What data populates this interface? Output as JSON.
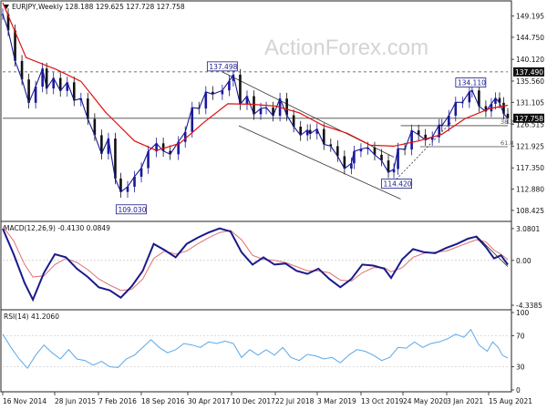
{
  "header": {
    "main": "EURJPY,Weekly  128.188 129.625 127.728 127.758",
    "macd": "MACD(12,26,9) -0.4130 0.0849",
    "rsi": "RSI(14) 41.2060"
  },
  "watermark": "ActionForex.com",
  "colors": {
    "bull": "#1a1a99",
    "bear": "#111111",
    "ma": "#e01010",
    "macd": "#1a1a8c",
    "signal": "#e07070",
    "rsi": "#5aa8e8",
    "channel": "#333333",
    "level": "#444444",
    "ann_fill": "#ffffff",
    "ann_border": "#1a1a8c",
    "last_bg": "#111111",
    "grid": "#cccccc"
  },
  "chart_data": [
    {
      "type": "line",
      "name": "price",
      "title": "EURJPY,Weekly",
      "ohlc_last": {
        "open": 128.188,
        "high": 129.625,
        "low": 127.728,
        "close": 127.758
      },
      "last_price": "127.758",
      "y_ticks": [
        "149.195",
        "144.750",
        "140.120",
        "135.560",
        "131.105",
        "126.515",
        "121.925",
        "117.350",
        "112.880",
        "108.425"
      ],
      "ylim": [
        106.5,
        152.0
      ],
      "x_ticks": [
        "16 Nov 2014",
        "28 Jun 2015",
        "7 Feb 2016",
        "18 Sep 2016",
        "30 Apr 2017",
        "10 Dec 2017",
        "22 Jul 2018",
        "3 Mar 2019",
        "13 Oct 2019",
        "24 May 2020",
        "3 Jan 2021",
        "15 Aug 2021"
      ],
      "candles": [
        [
          "2014-11-16",
          149.6
        ],
        [
          "2014-12-14",
          146.2
        ],
        [
          "2015-01-18",
          139.8
        ],
        [
          "2015-02-22",
          135.9
        ],
        [
          "2015-03-29",
          131.0
        ],
        [
          "2015-05-03",
          134.4
        ],
        [
          "2015-06-07",
          138.2
        ],
        [
          "2015-06-28",
          134.0
        ],
        [
          "2015-08-02",
          136.2
        ],
        [
          "2015-09-06",
          133.5
        ],
        [
          "2015-10-11",
          135.3
        ],
        [
          "2015-11-15",
          131.5
        ],
        [
          "2015-12-20",
          131.9
        ],
        [
          "2016-01-24",
          127.6
        ],
        [
          "2016-02-28",
          124.2
        ],
        [
          "2016-04-03",
          120.3
        ],
        [
          "2016-05-08",
          123.5
        ],
        [
          "2016-06-12",
          115.1
        ],
        [
          "2016-07-10",
          112.3
        ],
        [
          "2016-08-14",
          113.4
        ],
        [
          "2016-09-18",
          115.5
        ],
        [
          "2016-10-23",
          117.3
        ],
        [
          "2016-11-27",
          120.8
        ],
        [
          "2017-01-08",
          122.5
        ],
        [
          "2017-02-12",
          120.9
        ],
        [
          "2017-03-19",
          120.2
        ],
        [
          "2017-04-30",
          122.8
        ],
        [
          "2017-06-04",
          124.9
        ],
        [
          "2017-07-09",
          130.0
        ],
        [
          "2017-08-13",
          129.8
        ],
        [
          "2017-09-17",
          133.3
        ],
        [
          "2017-10-22",
          132.8
        ],
        [
          "2017-12-10",
          133.6
        ],
        [
          "2018-01-14",
          135.6
        ],
        [
          "2018-02-04",
          136.9
        ],
        [
          "2018-03-11",
          130.7
        ],
        [
          "2018-04-15",
          132.4
        ],
        [
          "2018-05-20",
          128.6
        ],
        [
          "2018-06-24",
          129.8
        ],
        [
          "2018-07-22",
          130.0
        ],
        [
          "2018-08-26",
          128.3
        ],
        [
          "2018-09-30",
          131.9
        ],
        [
          "2018-11-04",
          128.4
        ],
        [
          "2018-12-09",
          126.0
        ],
        [
          "2019-01-13",
          124.2
        ],
        [
          "2019-02-17",
          125.3
        ],
        [
          "2019-03-03",
          124.5
        ],
        [
          "2019-04-07",
          125.5
        ],
        [
          "2019-05-12",
          122.3
        ],
        [
          "2019-06-16",
          121.9
        ],
        [
          "2019-07-21",
          119.8
        ],
        [
          "2019-08-25",
          117.2
        ],
        [
          "2019-09-29",
          118.3
        ],
        [
          "2019-10-13",
          120.8
        ],
        [
          "2019-11-17",
          121.3
        ],
        [
          "2019-12-22",
          121.6
        ],
        [
          "2020-01-26",
          120.1
        ],
        [
          "2020-03-01",
          118.9
        ],
        [
          "2020-04-05",
          116.4
        ],
        [
          "2020-05-03",
          117.1
        ],
        [
          "2020-05-24",
          121.4
        ],
        [
          "2020-06-28",
          121.2
        ],
        [
          "2020-08-02",
          125.2
        ],
        [
          "2020-09-06",
          124.3
        ],
        [
          "2020-10-11",
          123.2
        ],
        [
          "2020-11-15",
          123.8
        ],
        [
          "2020-12-20",
          126.4
        ],
        [
          "2021-01-03",
          126.2
        ],
        [
          "2021-02-07",
          128.3
        ],
        [
          "2021-03-14",
          131.1
        ],
        [
          "2021-04-18",
          131.1
        ],
        [
          "2021-05-23",
          133.3
        ],
        [
          "2021-06-06",
          133.6
        ],
        [
          "2021-07-11",
          130.3
        ],
        [
          "2021-08-15",
          129.2
        ],
        [
          "2021-09-12",
          130.8
        ],
        [
          "2021-10-03",
          132.0
        ],
        [
          "2021-10-24",
          131.0
        ],
        [
          "2021-11-14",
          128.7
        ],
        [
          "2021-12-05",
          127.758
        ]
      ],
      "moving_average": [
        [
          "2014-11-16",
          152.0
        ],
        [
          "2015-03-15",
          140.5
        ],
        [
          "2015-08-16",
          138.0
        ],
        [
          "2015-12-20",
          135.5
        ],
        [
          "2016-04-24",
          129.0
        ],
        [
          "2016-09-18",
          123.0
        ],
        [
          "2017-01-08",
          121.0
        ],
        [
          "2017-05-07",
          122.5
        ],
        [
          "2017-09-10",
          127.0
        ],
        [
          "2018-01-07",
          130.8
        ],
        [
          "2018-05-06",
          130.7
        ],
        [
          "2018-09-09",
          130.3
        ],
        [
          "2019-01-06",
          128.9
        ],
        [
          "2019-05-05",
          126.3
        ],
        [
          "2019-09-08",
          124.6
        ],
        [
          "2020-01-05",
          122.1
        ],
        [
          "2020-05-03",
          121.9
        ],
        [
          "2020-09-06",
          123.0
        ],
        [
          "2021-01-03",
          124.4
        ],
        [
          "2021-05-02",
          127.7
        ],
        [
          "2021-09-05",
          129.8
        ],
        [
          "2021-12-05",
          130.5
        ]
      ],
      "annotations": [
        {
          "label": "137.498",
          "x": "2017-12-10",
          "y": 137.498
        },
        {
          "label": "109.030",
          "x": "2016-06-26",
          "y": 109.03
        },
        {
          "label": "114.420",
          "x": "2020-05-17",
          "y": 114.42
        },
        {
          "label": "134.110",
          "x": "2021-05-30",
          "y": 134.11
        }
      ],
      "levels": [
        {
          "value": 137.49,
          "label": "137.490",
          "style": "dashed",
          "from": "2014-11-16"
        },
        {
          "value": 127.758,
          "label": "127.758",
          "style": "solid",
          "from": "2014-11-16"
        },
        {
          "value": 126.2,
          "label": "38.2",
          "style": "solid",
          "from": "2020-06-07"
        },
        {
          "value": 121.8,
          "label": "61.8",
          "style": "solid",
          "from": "2020-09-13"
        }
      ],
      "channel_lines": [
        [
          [
            "2017-12-10",
            137.498
          ],
          [
            "2020-05-03",
            119.6
          ]
        ],
        [
          [
            "2018-03-04",
            126.2
          ],
          [
            "2020-06-07",
            110.8
          ]
        ],
        [
          [
            "2020-05-03",
            114.42
          ],
          [
            "2021-02-21",
            127.0
          ]
        ]
      ],
      "grid": false
    },
    {
      "type": "line",
      "name": "MACD(12,26,9)",
      "title": "MACD(12,26,9) -0.4130 0.0849",
      "values_last": {
        "macd": -0.413,
        "signal": 0.0849
      },
      "y_ticks": [
        "3.0801",
        "0.00",
        "-4.3385"
      ],
      "ylim": [
        -4.6,
        3.6
      ],
      "macd": [
        [
          "2014-11-16",
          3.08
        ],
        [
          "2015-01-11",
          0.6
        ],
        [
          "2015-03-08",
          -2.2
        ],
        [
          "2015-04-19",
          -3.8
        ],
        [
          "2015-06-14",
          -1.2
        ],
        [
          "2015-08-09",
          0.6
        ],
        [
          "2015-10-04",
          0.3
        ],
        [
          "2015-11-29",
          -0.8
        ],
        [
          "2016-01-24",
          -1.6
        ],
        [
          "2016-03-20",
          -2.6
        ],
        [
          "2016-05-15",
          -2.9
        ],
        [
          "2016-07-10",
          -3.6
        ],
        [
          "2016-09-04",
          -2.5
        ],
        [
          "2016-10-30",
          -1.0
        ],
        [
          "2016-12-25",
          1.6
        ],
        [
          "2017-02-19",
          1.0
        ],
        [
          "2017-04-16",
          0.3
        ],
        [
          "2017-06-11",
          1.6
        ],
        [
          "2017-08-06",
          2.2
        ],
        [
          "2017-10-01",
          2.7
        ],
        [
          "2017-11-26",
          3.1
        ],
        [
          "2018-01-21",
          2.8
        ],
        [
          "2018-03-18",
          0.8
        ],
        [
          "2018-05-13",
          -0.4
        ],
        [
          "2018-07-08",
          0.3
        ],
        [
          "2018-09-02",
          -0.4
        ],
        [
          "2018-10-28",
          -0.3
        ],
        [
          "2018-12-23",
          -1.0
        ],
        [
          "2019-02-17",
          -1.3
        ],
        [
          "2019-04-14",
          -0.8
        ],
        [
          "2019-06-09",
          -1.8
        ],
        [
          "2019-08-04",
          -2.6
        ],
        [
          "2019-09-29",
          -1.8
        ],
        [
          "2019-11-24",
          -0.4
        ],
        [
          "2020-01-19",
          -0.5
        ],
        [
          "2020-03-15",
          -0.8
        ],
        [
          "2020-04-19",
          -1.7
        ],
        [
          "2020-06-14",
          0.1
        ],
        [
          "2020-08-09",
          1.1
        ],
        [
          "2020-10-04",
          0.8
        ],
        [
          "2020-11-29",
          0.7
        ],
        [
          "2021-01-24",
          1.2
        ],
        [
          "2021-03-21",
          1.6
        ],
        [
          "2021-05-16",
          2.1
        ],
        [
          "2021-06-27",
          2.3
        ],
        [
          "2021-08-15",
          1.3
        ],
        [
          "2021-09-26",
          0.2
        ],
        [
          "2021-10-31",
          0.5
        ],
        [
          "2021-12-05",
          -0.413
        ]
      ],
      "signal": [
        [
          "2014-11-16",
          3.3
        ],
        [
          "2015-01-11",
          1.9
        ],
        [
          "2015-03-08",
          -0.4
        ],
        [
          "2015-04-19",
          -1.6
        ],
        [
          "2015-06-14",
          -1.5
        ],
        [
          "2015-08-09",
          -0.4
        ],
        [
          "2015-10-04",
          0.2
        ],
        [
          "2015-11-29",
          -0.2
        ],
        [
          "2016-01-24",
          -0.9
        ],
        [
          "2016-03-20",
          -1.8
        ],
        [
          "2016-05-15",
          -2.4
        ],
        [
          "2016-07-10",
          -2.9
        ],
        [
          "2016-09-04",
          -2.8
        ],
        [
          "2016-10-30",
          -1.8
        ],
        [
          "2016-12-25",
          0.2
        ],
        [
          "2017-02-19",
          0.9
        ],
        [
          "2017-04-16",
          0.6
        ],
        [
          "2017-06-11",
          0.9
        ],
        [
          "2017-08-06",
          1.6
        ],
        [
          "2017-10-01",
          2.2
        ],
        [
          "2017-11-26",
          2.7
        ],
        [
          "2018-01-21",
          2.9
        ],
        [
          "2018-03-18",
          2.0
        ],
        [
          "2018-05-13",
          0.5
        ],
        [
          "2018-07-08",
          0.1
        ],
        [
          "2018-09-02",
          0.0
        ],
        [
          "2018-10-28",
          -0.2
        ],
        [
          "2018-12-23",
          -0.6
        ],
        [
          "2019-02-17",
          -1.0
        ],
        [
          "2019-04-14",
          -1.0
        ],
        [
          "2019-06-09",
          -1.2
        ],
        [
          "2019-08-04",
          -1.9
        ],
        [
          "2019-09-29",
          -2.0
        ],
        [
          "2019-11-24",
          -1.2
        ],
        [
          "2020-01-19",
          -0.7
        ],
        [
          "2020-03-15",
          -0.7
        ],
        [
          "2020-04-19",
          -1.1
        ],
        [
          "2020-06-14",
          -0.7
        ],
        [
          "2020-08-09",
          0.3
        ],
        [
          "2020-10-04",
          0.7
        ],
        [
          "2020-11-29",
          0.8
        ],
        [
          "2021-01-24",
          0.9
        ],
        [
          "2021-03-21",
          1.3
        ],
        [
          "2021-05-16",
          1.7
        ],
        [
          "2021-06-27",
          2.0
        ],
        [
          "2021-08-15",
          1.8
        ],
        [
          "2021-09-26",
          1.0
        ],
        [
          "2021-10-31",
          0.6
        ],
        [
          "2021-12-05",
          0.0849
        ]
      ],
      "trend_line": [
        [
          "2021-06-27",
          2.4
        ],
        [
          "2021-12-05",
          -0.6
        ]
      ]
    },
    {
      "type": "line",
      "name": "RSI(14)",
      "title": "RSI(14) 41.2060",
      "last_value": 41.206,
      "y_ticks": [
        "100",
        "70",
        "30",
        "0"
      ],
      "ylim": [
        0,
        100
      ],
      "levels": [
        70,
        30
      ],
      "values": [
        [
          "2014-11-16",
          72
        ],
        [
          "2014-12-28",
          55
        ],
        [
          "2015-02-08",
          40
        ],
        [
          "2015-03-22",
          28
        ],
        [
          "2015-05-03",
          45
        ],
        [
          "2015-06-14",
          58
        ],
        [
          "2015-07-26",
          48
        ],
        [
          "2015-09-06",
          40
        ],
        [
          "2015-10-18",
          52
        ],
        [
          "2015-11-29",
          40
        ],
        [
          "2016-01-10",
          38
        ],
        [
          "2016-02-21",
          32
        ],
        [
          "2016-04-03",
          37
        ],
        [
          "2016-05-15",
          30
        ],
        [
          "2016-06-26",
          29
        ],
        [
          "2016-08-07",
          40
        ],
        [
          "2016-09-18",
          45
        ],
        [
          "2016-10-30",
          55
        ],
        [
          "2016-12-11",
          65
        ],
        [
          "2017-01-22",
          55
        ],
        [
          "2017-03-05",
          48
        ],
        [
          "2017-04-16",
          52
        ],
        [
          "2017-05-28",
          60
        ],
        [
          "2017-07-09",
          58
        ],
        [
          "2017-08-20",
          55
        ],
        [
          "2017-10-01",
          62
        ],
        [
          "2017-11-12",
          60
        ],
        [
          "2017-12-24",
          63
        ],
        [
          "2018-02-04",
          60
        ],
        [
          "2018-03-18",
          42
        ],
        [
          "2018-04-29",
          52
        ],
        [
          "2018-06-10",
          45
        ],
        [
          "2018-07-22",
          52
        ],
        [
          "2018-09-02",
          45
        ],
        [
          "2018-10-14",
          55
        ],
        [
          "2018-11-25",
          42
        ],
        [
          "2019-01-06",
          38
        ],
        [
          "2019-02-17",
          46
        ],
        [
          "2019-03-31",
          44
        ],
        [
          "2019-05-12",
          40
        ],
        [
          "2019-06-23",
          42
        ],
        [
          "2019-08-04",
          35
        ],
        [
          "2019-09-15",
          45
        ],
        [
          "2019-10-27",
          52
        ],
        [
          "2019-12-08",
          50
        ],
        [
          "2020-01-19",
          45
        ],
        [
          "2020-03-01",
          38
        ],
        [
          "2020-04-12",
          42
        ],
        [
          "2020-05-24",
          55
        ],
        [
          "2020-07-05",
          54
        ],
        [
          "2020-08-16",
          62
        ],
        [
          "2020-09-27",
          55
        ],
        [
          "2020-11-08",
          60
        ],
        [
          "2020-12-20",
          62
        ],
        [
          "2021-01-31",
          66
        ],
        [
          "2021-03-14",
          72
        ],
        [
          "2021-04-25",
          68
        ],
        [
          "2021-05-30",
          78
        ],
        [
          "2021-07-11",
          58
        ],
        [
          "2021-08-22",
          50
        ],
        [
          "2021-09-19",
          62
        ],
        [
          "2021-10-17",
          55
        ],
        [
          "2021-11-07",
          45
        ],
        [
          "2021-12-05",
          41.206
        ]
      ]
    }
  ]
}
